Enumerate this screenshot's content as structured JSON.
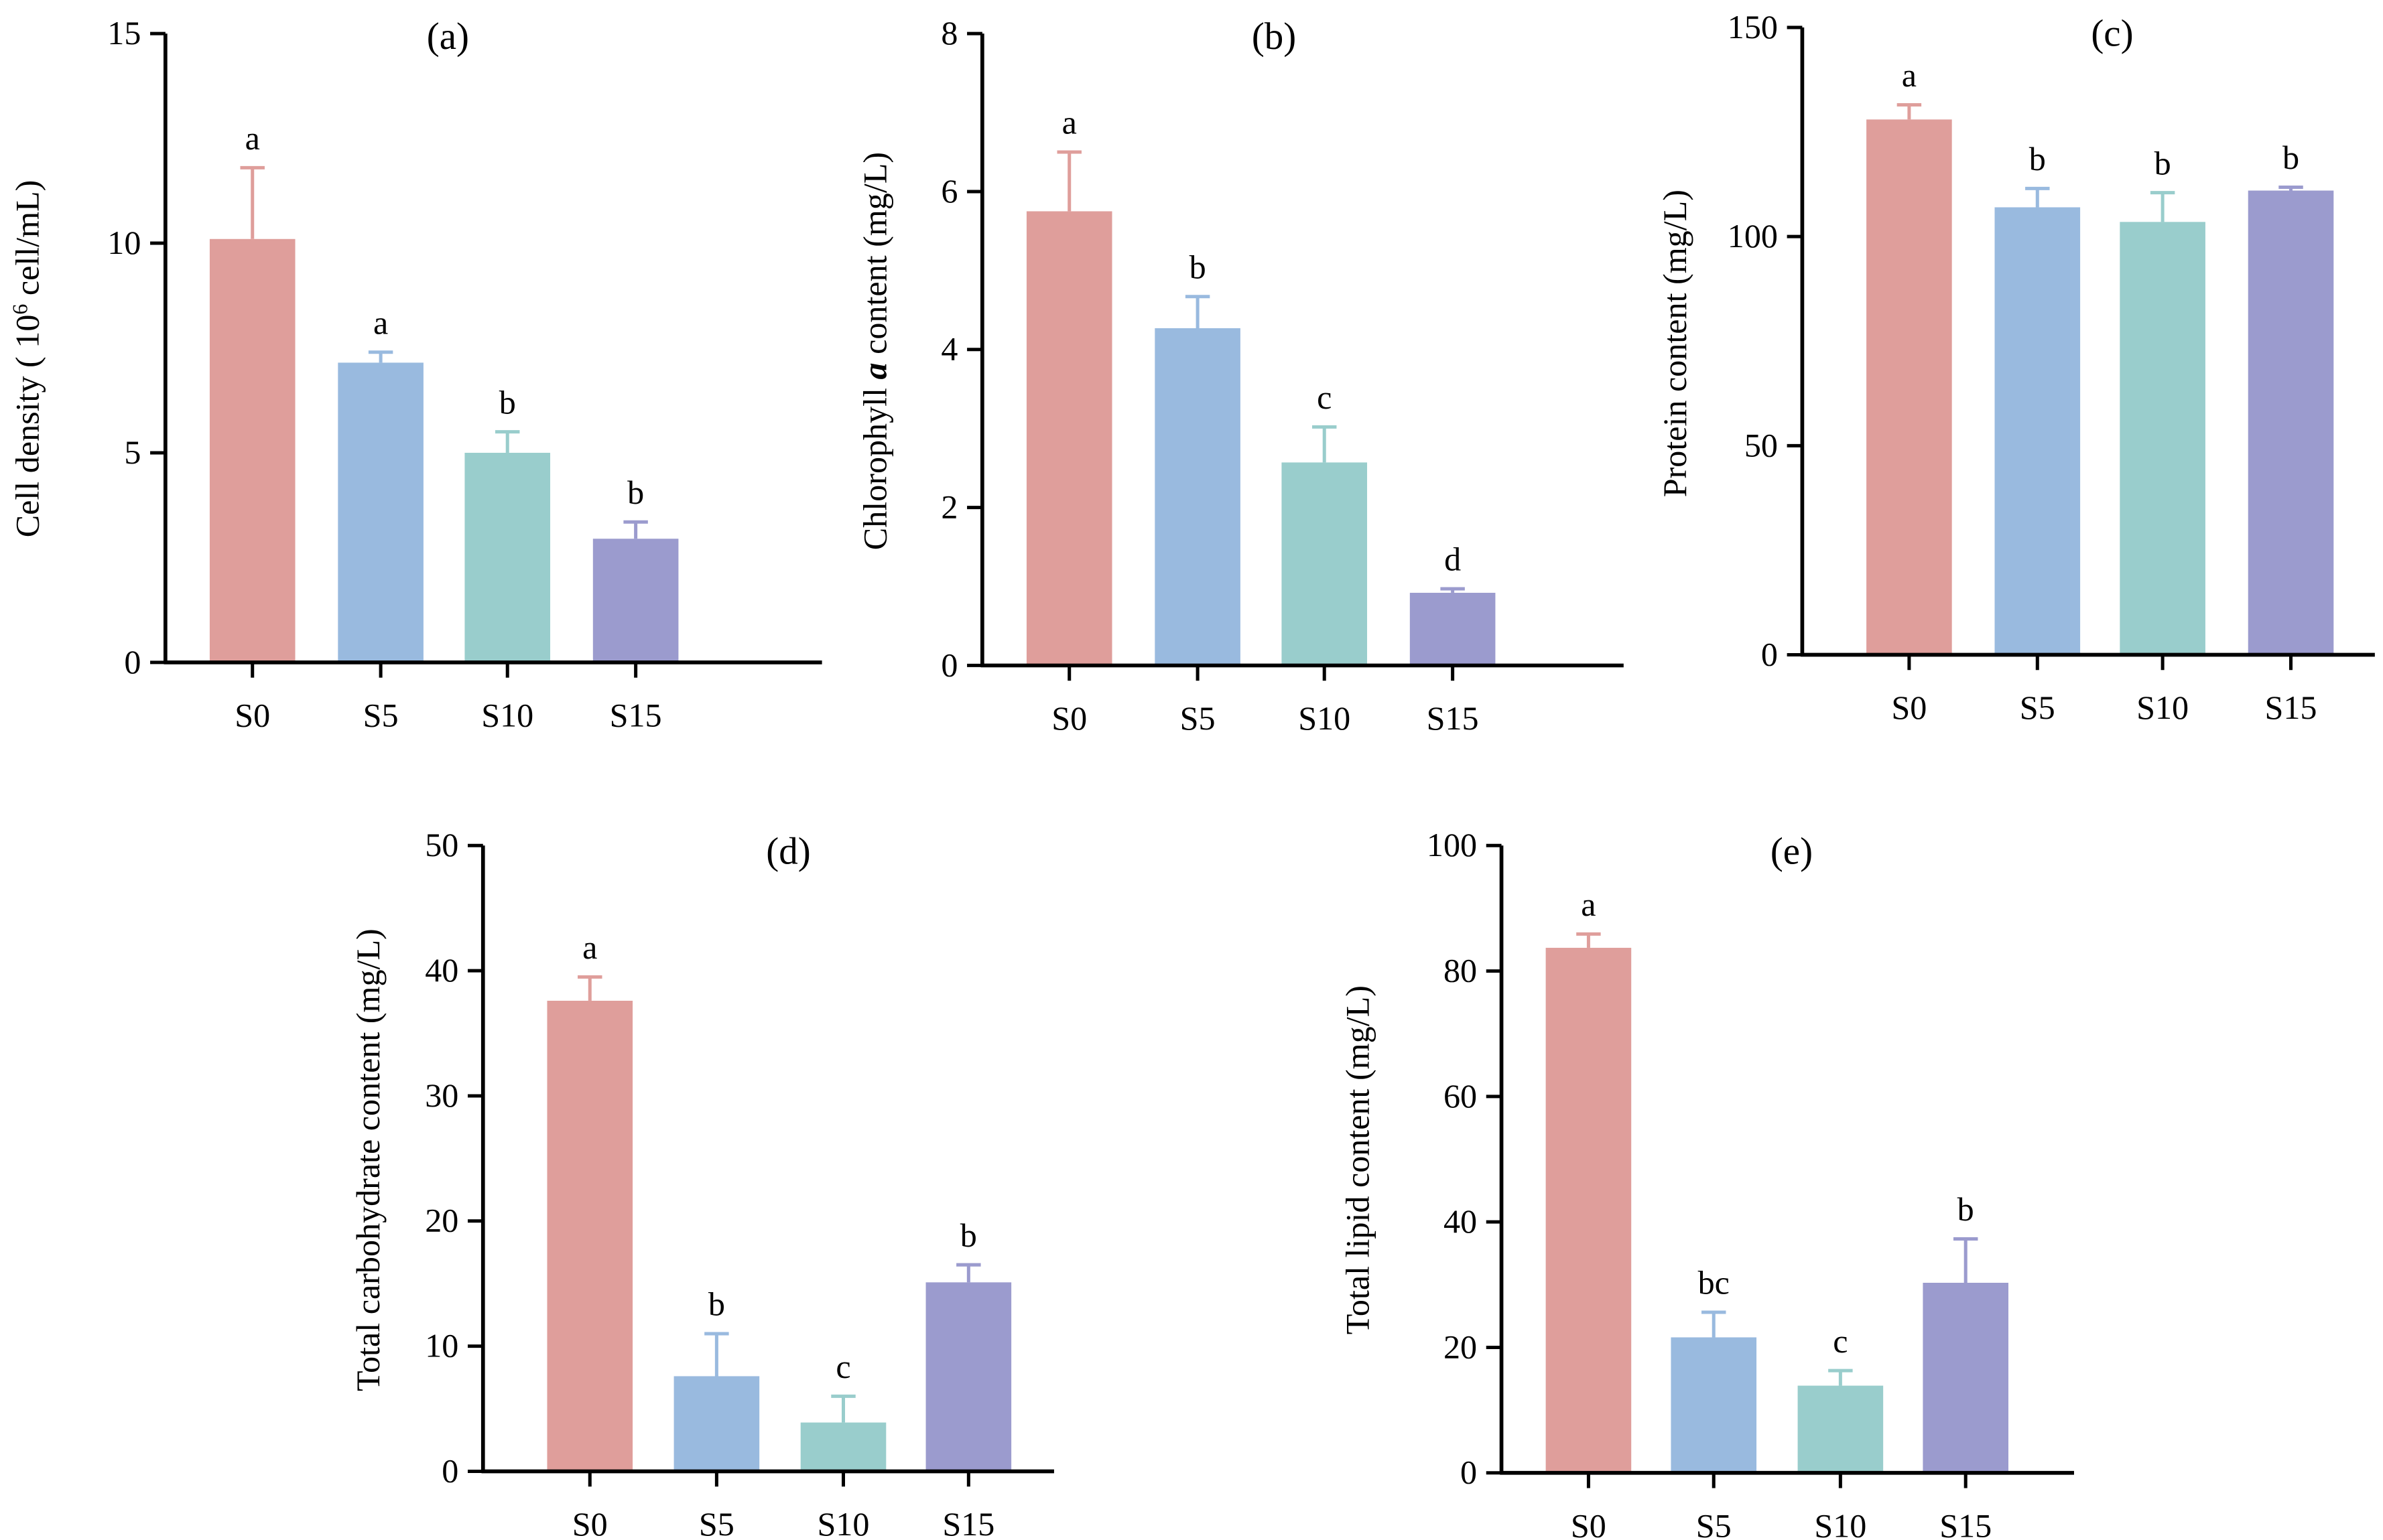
{
  "colors": {
    "S0": "#df9e9b",
    "S5": "#99badf",
    "S10": "#99cdcc",
    "S15": "#9b9bce",
    "axis": "#000000"
  },
  "chart_data": [
    {
      "type": "bar",
      "panel": "(a)",
      "title": "(a)",
      "ylabel_parts": [
        {
          "text": "Cell density ( 10"
        },
        {
          "text": "6",
          "sup": true
        },
        {
          "text": " cell/mL)"
        }
      ],
      "xlabel": "",
      "categories": [
        "S0",
        "S5",
        "S10",
        "S15"
      ],
      "values": [
        10.1,
        7.15,
        5.0,
        2.95
      ],
      "errors": [
        1.7,
        0.25,
        0.5,
        0.4
      ],
      "letters": [
        "a",
        "a",
        "b",
        "b"
      ],
      "ylim": [
        0,
        15
      ],
      "yticks": [
        0,
        5,
        10,
        15
      ],
      "grid": false
    },
    {
      "type": "bar",
      "panel": "(b)",
      "title": "(b)",
      "ylabel_parts": [
        {
          "text": "Chlorophyll "
        },
        {
          "text": "a",
          "bolditalic": true
        },
        {
          "text": " content (mg/L)"
        }
      ],
      "xlabel": "",
      "categories": [
        "S0",
        "S5",
        "S10",
        "S15"
      ],
      "values": [
        5.75,
        4.27,
        2.57,
        0.92
      ],
      "errors": [
        0.75,
        0.4,
        0.45,
        0.05
      ],
      "letters": [
        "a",
        "b",
        "c",
        "d"
      ],
      "ylim": [
        0,
        8
      ],
      "yticks": [
        0,
        2,
        4,
        6,
        8
      ],
      "grid": false
    },
    {
      "type": "bar",
      "panel": "(c)",
      "title": "(c)",
      "ylabel_parts": [
        {
          "text": "Protein content (mg/L)"
        }
      ],
      "xlabel": "",
      "categories": [
        "S0",
        "S5",
        "S10",
        "S15"
      ],
      "values": [
        128,
        107,
        103.5,
        111
      ],
      "errors": [
        3.5,
        4.5,
        7,
        0.8
      ],
      "letters": [
        "a",
        "b",
        "b",
        "b"
      ],
      "ylim": [
        0,
        150
      ],
      "yticks": [
        0,
        50,
        100,
        150
      ],
      "grid": false
    },
    {
      "type": "bar",
      "panel": "(d)",
      "title": "(d)",
      "ylabel_parts": [
        {
          "text": "Total carbohydrate content (mg/L)"
        }
      ],
      "xlabel": "",
      "categories": [
        "S0",
        "S5",
        "S10",
        "S15"
      ],
      "values": [
        37.6,
        7.6,
        3.9,
        15.1
      ],
      "errors": [
        1.9,
        3.4,
        2.1,
        1.4
      ],
      "letters": [
        "a",
        "b",
        "c",
        "b"
      ],
      "ylim": [
        0,
        50
      ],
      "yticks": [
        0,
        10,
        20,
        30,
        40,
        50
      ],
      "grid": false
    },
    {
      "type": "bar",
      "panel": "(e)",
      "title": "(e)",
      "ylabel_parts": [
        {
          "text": "Total lipid content  (mg/L)"
        }
      ],
      "xlabel": "",
      "categories": [
        "S0",
        "S5",
        "S10",
        "S15"
      ],
      "values": [
        83.7,
        21.6,
        13.9,
        30.3
      ],
      "errors": [
        2.2,
        4.0,
        2.4,
        7.0
      ],
      "letters": [
        "a",
        "bc",
        "c",
        "b"
      ],
      "ylim": [
        0,
        100
      ],
      "yticks": [
        0,
        20,
        40,
        60,
        80,
        100
      ],
      "grid": false
    }
  ]
}
